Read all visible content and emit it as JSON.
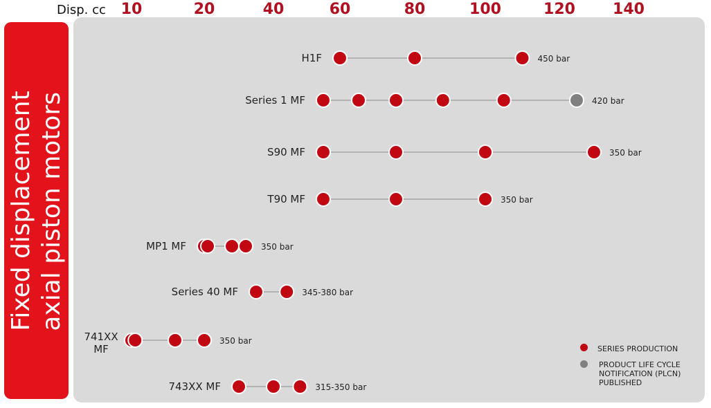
{
  "chart_data": {
    "type": "scatter",
    "title": "",
    "side_title": [
      "Fixed displacement",
      "axial piston motors"
    ],
    "xlabel": "Disp. cc",
    "x_ticks": [
      10,
      20,
      40,
      60,
      80,
      100,
      120,
      140
    ],
    "colors": {
      "series_production": "#c00712",
      "plcn": "#808080",
      "line": "#8a8a8a"
    },
    "rows": [
      {
        "name": "H1F",
        "pressure": "450 bar",
        "points": [
          {
            "x": 60,
            "status": "series"
          },
          {
            "x": 80,
            "status": "series"
          },
          {
            "x": 110,
            "status": "series"
          }
        ]
      },
      {
        "name": "Series 1 MF",
        "pressure": "420 bar",
        "points": [
          {
            "x": 55,
            "status": "series"
          },
          {
            "x": 65,
            "status": "series"
          },
          {
            "x": 75,
            "status": "series"
          },
          {
            "x": 88,
            "status": "series"
          },
          {
            "x": 105,
            "status": "series"
          },
          {
            "x": 125,
            "status": "plcn"
          }
        ]
      },
      {
        "name": "S90 MF",
        "pressure": "350 bar",
        "points": [
          {
            "x": 55,
            "status": "series"
          },
          {
            "x": 75,
            "status": "series"
          },
          {
            "x": 100,
            "status": "series"
          },
          {
            "x": 130,
            "status": "series"
          }
        ]
      },
      {
        "name": "T90 MF",
        "pressure": "350 bar",
        "points": [
          {
            "x": 55,
            "status": "series"
          },
          {
            "x": 75,
            "status": "series"
          },
          {
            "x": 100,
            "status": "series"
          }
        ]
      },
      {
        "name": "MP1 MF",
        "pressure": "350 bar",
        "points": [
          {
            "x": 20,
            "status": "series"
          },
          {
            "x": 21,
            "status": "series"
          },
          {
            "x": 28,
            "status": "series"
          },
          {
            "x": 32,
            "status": "series"
          }
        ]
      },
      {
        "name": "Series 40 MF",
        "pressure": "345-380 bar",
        "points": [
          {
            "x": 35,
            "status": "series"
          },
          {
            "x": 44,
            "status": "series"
          }
        ]
      },
      {
        "name": "741XX MF",
        "pressure": "350 bar",
        "points": [
          {
            "x": 10,
            "status": "series"
          },
          {
            "x": 10.5,
            "status": "series"
          },
          {
            "x": 16,
            "status": "series"
          },
          {
            "x": 20,
            "status": "series"
          }
        ]
      },
      {
        "name": "743XX MF",
        "pressure": "315-350 bar",
        "points": [
          {
            "x": 30,
            "status": "series"
          },
          {
            "x": 40,
            "status": "series"
          },
          {
            "x": 48,
            "status": "series"
          }
        ]
      }
    ],
    "legend": [
      {
        "label": "SERIES PRODUCTION",
        "status": "series"
      },
      {
        "label": "PRODUCT LIFE CYCLE NOTIFICATION (PLCN) PUBLISHED",
        "status": "plcn"
      }
    ]
  }
}
